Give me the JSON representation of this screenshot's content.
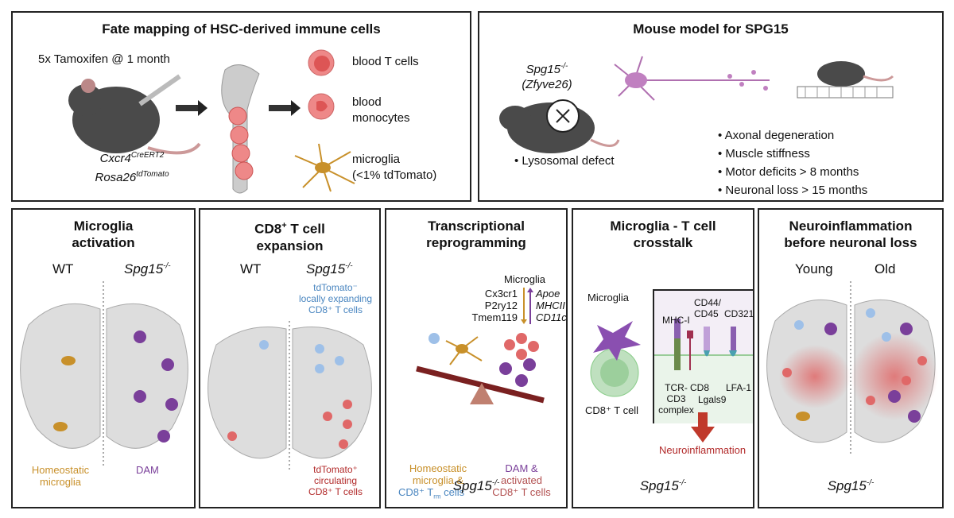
{
  "fate_panel": {
    "title": "Fate mapping of HSC-derived immune cells",
    "treatment": "5x Tamoxifen @ 1 month",
    "genotype_1": "Cxcr4",
    "genotype_1_sup": "CreERT2",
    "genotype_2": "Rosa26",
    "genotype_2_sup": "tdTomato",
    "legend": [
      "blood T cells",
      "blood\nmonocytes",
      "microglia\n(<1% tdTomato)"
    ]
  },
  "model_panel": {
    "title": "Mouse model for SPG15",
    "gene": "Spg15",
    "gene_sup": "-/-",
    "gene_alias": "(Zfyve26)",
    "defect": "Lysosomal defect",
    "phenotypes": [
      "Axonal degeneration",
      "Muscle stiffness",
      "Motor deficits > 8 months",
      "Neuronal loss > 15 months"
    ]
  },
  "panels": [
    {
      "title": "Microglia\nactivation",
      "left": "WT",
      "right": "Spg15",
      "right_sup": "-/-",
      "left_label": "Homeostatic\nmicroglia",
      "right_label": "DAM"
    },
    {
      "title_pre": "CD8",
      "title_sup": "+",
      "title_post": " T cell\nexpansion",
      "left": "WT",
      "right": "Spg15",
      "right_sup": "-/-",
      "top_label": "tdTomato⁻\nlocally expanding\nCD8⁺ T cells",
      "bottom_label": "tdTomato⁺\ncirculating\nCD8⁺ T cells"
    },
    {
      "title": "Transcriptional\nreprogramming",
      "microglia": "Microglia",
      "down_genes": "Cx3cr1\nP2ry12\nTmem119",
      "up_genes": "Apoe\nMHCII\nCD11c",
      "left_label_1": "Homeostatic\nmicroglia &",
      "left_label_2": "CD8⁺ T",
      "left_label_2_sub": "rm",
      "left_label_3": " cells",
      "right_label_1": "DAM &",
      "right_label_2": "activated\nCD8⁺ T cells",
      "footer": "Spg15",
      "footer_sup": "-/-"
    },
    {
      "title": "Microglia - T cell\ncrosstalk",
      "microglia": "Microglia",
      "tcell": "CD8⁺ T cell",
      "molecules": {
        "mhc": "MHC-I",
        "cd44": "CD44/\nCD45",
        "cd321": "CD321",
        "tcr": "TCR-\nCD3\ncomplex",
        "cd8": "CD8",
        "lgals9": "Lgals9",
        "lfa1": "LFA-1"
      },
      "outcome": "Neuroinflammation",
      "footer": "Spg15",
      "footer_sup": "-/-"
    },
    {
      "title": "Neuroinflammation\nbefore neuronal loss",
      "left": "Young",
      "right": "Old",
      "footer": "Spg15",
      "footer_sup": "-/-"
    }
  ],
  "colors": {
    "homeostatic": "#c8902a",
    "dam": "#7a3f9a",
    "tdtomato_pos": "#b22a2a",
    "tdtomato_neg": "#4a86c0",
    "tcell_red": "#e06868",
    "arrow_red": "#c0392b"
  }
}
